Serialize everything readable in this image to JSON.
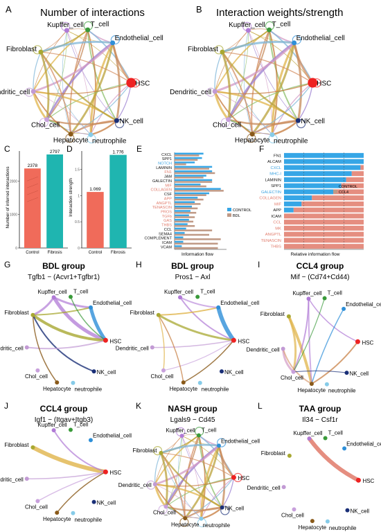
{
  "colors": {
    "Kupffer_cell": "#b07ad6",
    "T_cell": "#3a9a3a",
    "Endothelial_cell": "#2e8fd8",
    "HSC": "#ee2222",
    "NK_cell": "#1a2f77",
    "neutrophile": "#86cbe8",
    "Hepatocyte": "#8a5a1a",
    "Chol_cell": "#c8a0dc",
    "Dendritic_cell": "#c29ad4",
    "Fibroblast": "#a8a832",
    "control": "#f06b5a",
    "disease": "#1fb5b0",
    "legend_control": "#36a6e6",
    "legend_other": "#c09a86",
    "label_blue": "#3aa2e0",
    "label_red": "#e07a6a",
    "label_black": "#111111"
  },
  "network_node_labels": [
    "Kupffer_cell",
    "T_cell",
    "Endothelial_cell",
    "HSC",
    "NK_cell",
    "neutrophile",
    "Hepatocyte",
    "Chol_cell",
    "Dendritic_cell",
    "Fibroblast"
  ],
  "chart_data": [
    {
      "panel": "A",
      "type": "network",
      "title": "Number of interactions",
      "nodes": [
        "Kupffer_cell",
        "T_cell",
        "Endothelial_cell",
        "HSC",
        "NK_cell",
        "neutrophile",
        "Hepatocyte",
        "Chol_cell",
        "Dendritic_cell",
        "Fibroblast"
      ],
      "edges": "all-to-all"
    },
    {
      "panel": "B",
      "type": "network",
      "title": "Interaction weights/strength",
      "nodes": [
        "Kupffer_cell",
        "T_cell",
        "Endothelial_cell",
        "HSC",
        "NK_cell",
        "neutrophile",
        "Hepatocyte",
        "Chol_cell",
        "Dendritic_cell",
        "Fibroblast"
      ],
      "edges": "all-to-all"
    },
    {
      "panel": "C",
      "type": "bar",
      "categories": [
        "Control",
        "Fibrosis"
      ],
      "values": [
        2378,
        2797
      ],
      "ylabel": "Number of inferred interactions",
      "yticks": [
        0,
        1000,
        2000
      ],
      "ylim": [
        0,
        2900
      ]
    },
    {
      "panel": "D",
      "type": "bar",
      "categories": [
        "Control",
        "Fibrosis"
      ],
      "values": [
        1.069,
        1.776
      ],
      "value_labels": [
        "1.069",
        "1.776"
      ],
      "ylabel": "Interaction strength",
      "yticks": [
        0,
        0.5,
        1.0,
        1.5
      ],
      "ylim": [
        0,
        1.85
      ]
    },
    {
      "panel": "E",
      "type": "bar",
      "orientation": "horizontal",
      "xlabel": "Information flow",
      "legend": [
        "CONTROL",
        "BDL"
      ],
      "legend_position": "right",
      "categories": [
        "CXCL",
        "SPP1",
        "NOTCH",
        "LAMININ",
        "FN1",
        "JAM",
        "GALECTIN",
        "MIF",
        "COLLAGEN",
        "CSF",
        "APP",
        "ANGPTL",
        "TENASCIN",
        "PROS",
        "TGFb",
        "GAS",
        "THBS",
        "CCL",
        "SEMA4",
        "COMPLEMENT",
        "ICAM",
        "VCAM"
      ],
      "label_color": [
        "black",
        "black",
        "blue",
        "black",
        "red",
        "black",
        "black",
        "red",
        "red",
        "black",
        "red",
        "red",
        "red",
        "red",
        "red",
        "red",
        "red",
        "black",
        "black",
        "black",
        "black",
        "black"
      ],
      "series": [
        {
          "name": "CONTROL",
          "values": [
            1.0,
            0.95,
            0.7,
            1.3,
            1.3,
            1.1,
            1.3,
            0.9,
            1.6,
            1.2,
            0.8,
            0.7,
            0.6,
            0.55,
            0.5,
            0.5,
            0.45,
            0.4,
            0.35,
            0.3,
            0.3,
            0.25
          ]
        },
        {
          "name": "BDL",
          "values": [
            0.85,
            0.8,
            0.4,
            1.2,
            1.4,
            1.0,
            1.3,
            1.1,
            1.7,
            1.1,
            1.0,
            0.9,
            0.8,
            0.75,
            0.7,
            0.65,
            0.7,
            1.3,
            1.2,
            1.6,
            1.5,
            1.5
          ]
        }
      ]
    },
    {
      "panel": "F",
      "type": "bar",
      "orientation": "horizontal",
      "stacked": true,
      "xlabel": "Relative information flow",
      "legend": [
        "CONTROL",
        "CCL4"
      ],
      "legend_position": "right",
      "categories": [
        "FN1",
        "ALCAM",
        "CXCL",
        "MHC-I",
        "LAMININ",
        "SPP1",
        "GALECTIN",
        "COLLAGEN",
        "MIF",
        "APP",
        "ICAM",
        "CCL",
        "MK",
        "ANGPTL",
        "TENASCIN",
        "THBS"
      ],
      "label_color": [
        "black",
        "black",
        "blue",
        "blue",
        "black",
        "black",
        "blue",
        "red",
        "red",
        "black",
        "black",
        "red",
        "red",
        "red",
        "red",
        "red"
      ],
      "series": [
        {
          "name": "CONTROL",
          "values": [
            1.0,
            1.0,
            0.96,
            0.85,
            0.78,
            0.72,
            0.62,
            0.35,
            0.22,
            0.12,
            0.0,
            0.0,
            0.0,
            0.0,
            0.0,
            0.0
          ]
        },
        {
          "name": "CCL4",
          "values": [
            0.0,
            0.0,
            0.04,
            0.15,
            0.22,
            0.28,
            0.38,
            0.65,
            0.78,
            0.88,
            1.0,
            1.0,
            1.0,
            1.0,
            1.0,
            1.0
          ]
        }
      ]
    },
    {
      "panel": "G",
      "type": "network",
      "title": "BDL group",
      "subtitle": "Tgfb1  − (Acvr1+Tgfbr1)"
    },
    {
      "panel": "H",
      "type": "network",
      "title": "BDL group",
      "subtitle": "Pros1  − Axl"
    },
    {
      "panel": "I",
      "type": "network",
      "title": "CCL4 group",
      "subtitle": "Mif  − (Cd74+Cd44)"
    },
    {
      "panel": "J",
      "type": "network",
      "title": "CCL4 group",
      "subtitle": "Igf1  − (Itgav+Itgb3)"
    },
    {
      "panel": "K",
      "type": "network",
      "title": "NASH group",
      "subtitle": "Lgals9  − Cd45"
    },
    {
      "panel": "L",
      "type": "network",
      "title": "TAA group",
      "subtitle": "Il34  − Csf1r"
    }
  ]
}
